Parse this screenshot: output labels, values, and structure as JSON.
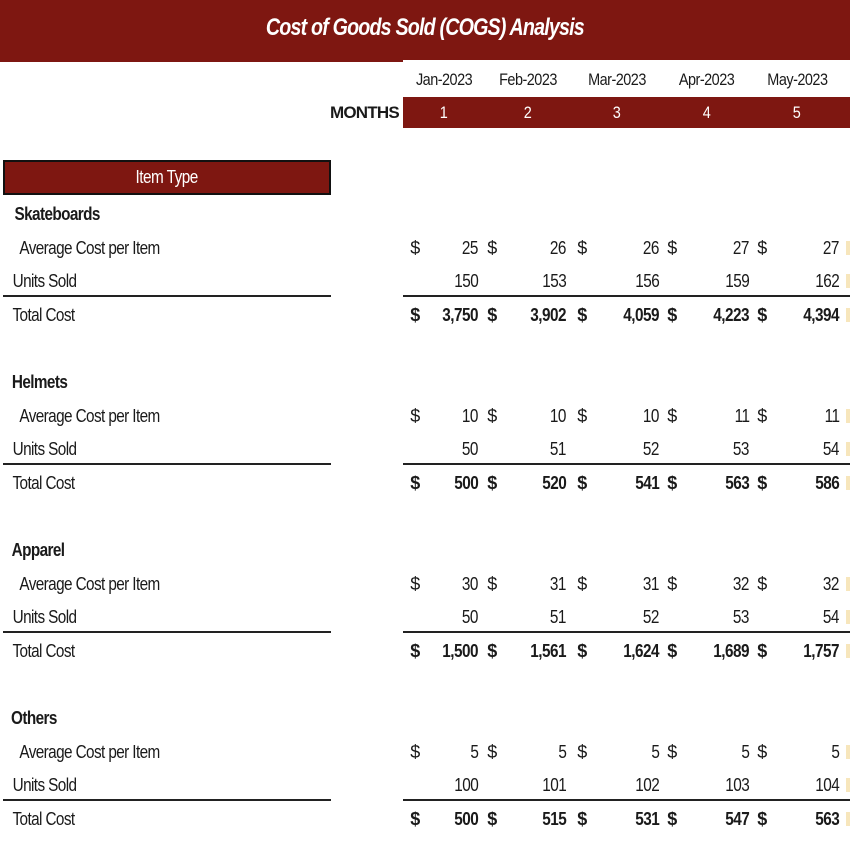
{
  "title": "Cost of Goods Sold (COGS) Analysis",
  "header": {
    "months_caption": "MONTHS",
    "columns": [
      {
        "date": "Jan-2023",
        "month": "1"
      },
      {
        "date": "Feb-2023",
        "month": "2"
      },
      {
        "date": "Mar-2023",
        "month": "3"
      },
      {
        "date": "Apr-2023",
        "month": "4"
      },
      {
        "date": "May-2023",
        "month": "5"
      }
    ]
  },
  "item_type_header": "Item Type",
  "currency_symbol": "$",
  "row_labels": {
    "avg_cost": "Average Cost per Item",
    "units": "Units Sold",
    "total": "Total Cost"
  },
  "sections": [
    {
      "name": "Skateboards",
      "avg_cost": [
        "25",
        "26",
        "26",
        "27",
        "27"
      ],
      "units": [
        "150",
        "153",
        "156",
        "159",
        "162"
      ],
      "total": [
        "3,750",
        "3,902",
        "4,059",
        "4,223",
        "4,394"
      ]
    },
    {
      "name": "Helmets",
      "avg_cost": [
        "10",
        "10",
        "10",
        "11",
        "11"
      ],
      "units": [
        "50",
        "51",
        "52",
        "53",
        "54"
      ],
      "total": [
        "500",
        "520",
        "541",
        "563",
        "586"
      ]
    },
    {
      "name": "Apparel",
      "avg_cost": [
        "30",
        "31",
        "31",
        "32",
        "32"
      ],
      "units": [
        "50",
        "51",
        "52",
        "53",
        "54"
      ],
      "total": [
        "1,500",
        "1,561",
        "1,624",
        "1,689",
        "1,757"
      ]
    },
    {
      "name": "Others",
      "avg_cost": [
        "5",
        "5",
        "5",
        "5",
        "5"
      ],
      "units": [
        "100",
        "101",
        "102",
        "103",
        "104"
      ],
      "total": [
        "500",
        "515",
        "531",
        "547",
        "563"
      ]
    }
  ],
  "colors": {
    "accent": "#7e1711",
    "header_text": "#ffffff",
    "body_text": "#1a1a1a"
  }
}
